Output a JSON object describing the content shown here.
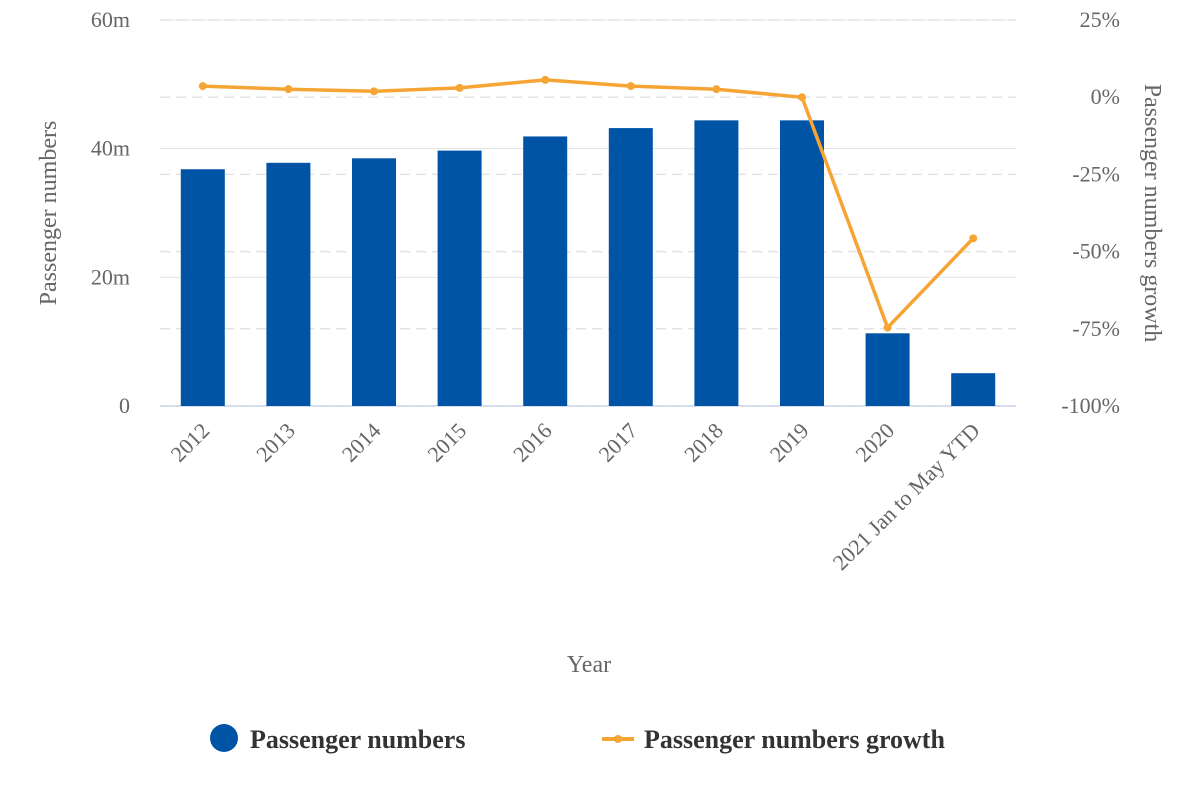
{
  "chart_data": {
    "type": "bar",
    "title": "",
    "xlabel": "Year",
    "ylabel": "Passenger numbers",
    "y2label": "Passenger numbers growth",
    "categories": [
      "2012",
      "2013",
      "2014",
      "2015",
      "2016",
      "2017",
      "2018",
      "2019",
      "2020",
      "2021 Jan to May YTD"
    ],
    "ylim": [
      0,
      60
    ],
    "y_ticks": [
      {
        "value": 0,
        "label": "0"
      },
      {
        "value": 20,
        "label": "20m"
      },
      {
        "value": 40,
        "label": "40m"
      },
      {
        "value": 60,
        "label": "60m"
      }
    ],
    "y2lim": [
      -100,
      25
    ],
    "y2_ticks": [
      {
        "value": -100,
        "label": "-100%"
      },
      {
        "value": -75,
        "label": "-75%"
      },
      {
        "value": -50,
        "label": "-50%"
      },
      {
        "value": -25,
        "label": "-25%"
      },
      {
        "value": 0,
        "label": "0%"
      },
      {
        "value": 25,
        "label": "25%"
      }
    ],
    "grid": true,
    "legend_position": "bottom-center",
    "series": [
      {
        "name": "Passenger numbers",
        "type": "bar",
        "axis": "left",
        "color": "#0054a6",
        "values": [
          36.8,
          37.8,
          38.5,
          39.7,
          41.9,
          43.2,
          44.4,
          44.4,
          11.3,
          5.1
        ]
      },
      {
        "name": "Passenger numbers growth",
        "type": "line",
        "axis": "right",
        "color": "#f6a535",
        "values": [
          3.6,
          2.6,
          1.9,
          3.0,
          5.6,
          3.6,
          2.6,
          0.0,
          -74.6,
          -45.7
        ]
      }
    ]
  }
}
